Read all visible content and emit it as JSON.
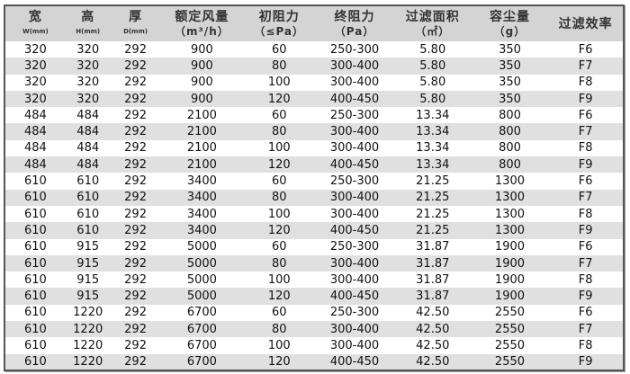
{
  "headers": [
    {
      "title": "宽",
      "unit": "W(mm)"
    },
    {
      "title": "高",
      "unit": "H(mm)"
    },
    {
      "title": "厚",
      "unit": "D(mm)"
    },
    {
      "title": "额定风量",
      "sub": "（m³/h）"
    },
    {
      "title": "初阻力",
      "sub": "（≤Pa）"
    },
    {
      "title": "终阻力",
      "sub": "（Pa）"
    },
    {
      "title": "过滤面积",
      "sub": "（㎡）"
    },
    {
      "title": "容尘量",
      "sub": "（g）"
    },
    {
      "title": "过滤效率"
    }
  ],
  "rows": [
    [
      "320",
      "320",
      "292",
      "900",
      "60",
      "250-300",
      "5.80",
      "350",
      "F6"
    ],
    [
      "320",
      "320",
      "292",
      "900",
      "80",
      "300-400",
      "5.80",
      "350",
      "F7"
    ],
    [
      "320",
      "320",
      "292",
      "900",
      "100",
      "300-400",
      "5.80",
      "350",
      "F8"
    ],
    [
      "320",
      "320",
      "292",
      "900",
      "120",
      "400-450",
      "5.80",
      "350",
      "F9"
    ],
    [
      "484",
      "484",
      "292",
      "2100",
      "60",
      "250-300",
      "13.34",
      "800",
      "F6"
    ],
    [
      "484",
      "484",
      "292",
      "2100",
      "80",
      "300-400",
      "13.34",
      "800",
      "F7"
    ],
    [
      "484",
      "484",
      "292",
      "2100",
      "100",
      "300-400",
      "13.34",
      "800",
      "F8"
    ],
    [
      "484",
      "484",
      "292",
      "2100",
      "120",
      "400-450",
      "13.34",
      "800",
      "F9"
    ],
    [
      "610",
      "610",
      "292",
      "3400",
      "60",
      "250-300",
      "21.25",
      "1300",
      "F6"
    ],
    [
      "610",
      "610",
      "292",
      "3400",
      "80",
      "300-400",
      "21.25",
      "1300",
      "F7"
    ],
    [
      "610",
      "610",
      "292",
      "3400",
      "100",
      "300-400",
      "21.25",
      "1300",
      "F8"
    ],
    [
      "610",
      "610",
      "292",
      "3400",
      "120",
      "400-450",
      "21.25",
      "1300",
      "F9"
    ],
    [
      "610",
      "915",
      "292",
      "5000",
      "60",
      "250-300",
      "31.87",
      "1900",
      "F6"
    ],
    [
      "610",
      "915",
      "292",
      "5000",
      "80",
      "300-400",
      "31.87",
      "1900",
      "F7"
    ],
    [
      "610",
      "915",
      "292",
      "5000",
      "100",
      "300-400",
      "31.87",
      "1900",
      "F8"
    ],
    [
      "610",
      "915",
      "292",
      "5000",
      "120",
      "400-450",
      "31.87",
      "1900",
      "F9"
    ],
    [
      "610",
      "1220",
      "292",
      "6700",
      "60",
      "250-300",
      "42.50",
      "2550",
      "F6"
    ],
    [
      "610",
      "1220",
      "292",
      "6700",
      "80",
      "300-400",
      "42.50",
      "2550",
      "F7"
    ],
    [
      "610",
      "1220",
      "292",
      "6700",
      "100",
      "300-400",
      "42.50",
      "2550",
      "F8"
    ],
    [
      "610",
      "1220",
      "292",
      "6700",
      "120",
      "400-450",
      "42.50",
      "2550",
      "F9"
    ]
  ]
}
